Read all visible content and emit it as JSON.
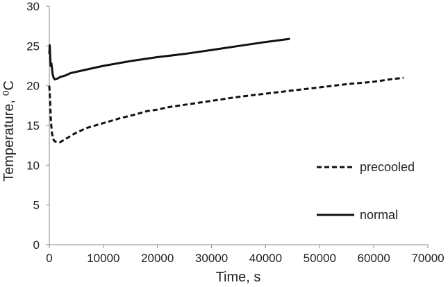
{
  "chart_data": {
    "type": "line",
    "title": "",
    "xlabel": "Time, s",
    "ylabel": "Temperature, ⁰C",
    "xlim": [
      0,
      70000
    ],
    "ylim": [
      0,
      30
    ],
    "xticks": [
      0,
      10000,
      20000,
      30000,
      40000,
      50000,
      60000,
      70000
    ],
    "yticks": [
      0,
      5,
      10,
      15,
      20,
      25,
      30
    ],
    "xtick_labels": [
      "0",
      "10000",
      "20000",
      "30000",
      "40000",
      "50000",
      "60000",
      "70000"
    ],
    "ytick_labels": [
      "0",
      "5",
      "10",
      "15",
      "20",
      "25",
      "30"
    ],
    "grid": false,
    "legend_placement": "bottom-right",
    "series": [
      {
        "name": "precooled",
        "style": "dashed",
        "color": "#111111",
        "x": [
          0,
          150,
          300,
          500,
          700,
          1000,
          1500,
          2000,
          3000,
          4000,
          5000,
          7000,
          10000,
          13000,
          16000,
          18000,
          20000,
          22000,
          25000,
          30000,
          35000,
          40000,
          45000,
          50000,
          55000,
          60000,
          63000,
          65500
        ],
        "y": [
          20.0,
          18.0,
          15.5,
          14.0,
          13.3,
          13.0,
          12.9,
          12.9,
          13.3,
          13.7,
          14.1,
          14.7,
          15.3,
          15.9,
          16.4,
          16.8,
          17.0,
          17.3,
          17.6,
          18.1,
          18.6,
          19.0,
          19.4,
          19.8,
          20.2,
          20.5,
          20.8,
          21.0
        ]
      },
      {
        "name": "normal",
        "style": "solid",
        "color": "#111111",
        "x": [
          0,
          80,
          150,
          250,
          400,
          600,
          800,
          1000,
          1500,
          2000,
          3000,
          4000,
          6000,
          8000,
          10000,
          15000,
          20000,
          25000,
          30000,
          35000,
          40000,
          44500
        ],
        "y": [
          24.0,
          25.1,
          23.8,
          22.5,
          22.8,
          21.5,
          21.0,
          20.8,
          20.9,
          21.1,
          21.3,
          21.6,
          21.9,
          22.2,
          22.5,
          23.1,
          23.6,
          24.0,
          24.5,
          25.0,
          25.5,
          25.9
        ]
      }
    ]
  }
}
